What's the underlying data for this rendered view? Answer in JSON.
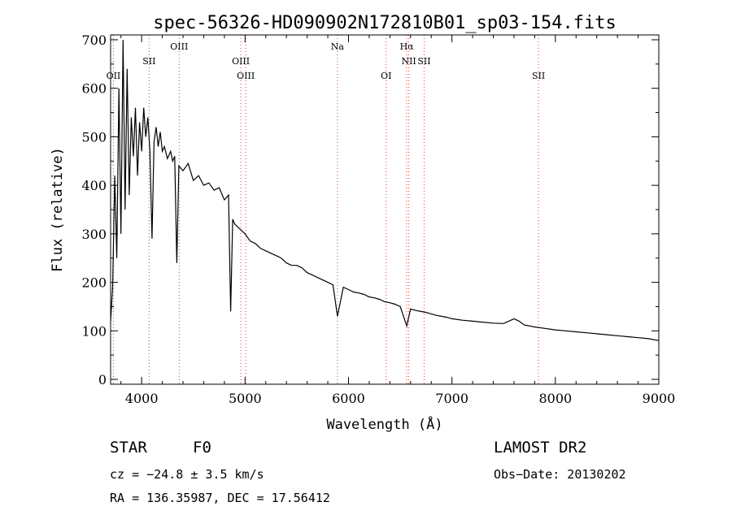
{
  "chart_data": {
    "type": "line",
    "title": "spec-56326-HD090902N172810B01_sp03-154.fits",
    "xlabel": "Wavelength (Å)",
    "ylabel": "Flux (relative)",
    "xlim": [
      3700,
      9000
    ],
    "ylim": [
      -10,
      710
    ],
    "xticks": [
      4000,
      5000,
      6000,
      7000,
      8000,
      9000
    ],
    "yticks": [
      0,
      100,
      200,
      300,
      400,
      500,
      600,
      700
    ],
    "grid": false,
    "series": [
      {
        "color": "#000000",
        "points": [
          [
            3700,
            120
          ],
          [
            3720,
            190
          ],
          [
            3740,
            420
          ],
          [
            3760,
            250
          ],
          [
            3780,
            600
          ],
          [
            3800,
            300
          ],
          [
            3820,
            700
          ],
          [
            3840,
            350
          ],
          [
            3860,
            640
          ],
          [
            3880,
            380
          ],
          [
            3900,
            540
          ],
          [
            3920,
            460
          ],
          [
            3940,
            560
          ],
          [
            3960,
            420
          ],
          [
            3980,
            530
          ],
          [
            4000,
            470
          ],
          [
            4020,
            560
          ],
          [
            4040,
            500
          ],
          [
            4060,
            540
          ],
          [
            4080,
            470
          ],
          [
            4100,
            290
          ],
          [
            4120,
            490
          ],
          [
            4140,
            520
          ],
          [
            4160,
            480
          ],
          [
            4180,
            510
          ],
          [
            4200,
            470
          ],
          [
            4220,
            480
          ],
          [
            4250,
            455
          ],
          [
            4280,
            470
          ],
          [
            4300,
            450
          ],
          [
            4320,
            460
          ],
          [
            4340,
            240
          ],
          [
            4360,
            440
          ],
          [
            4400,
            430
          ],
          [
            4450,
            445
          ],
          [
            4500,
            410
          ],
          [
            4550,
            420
          ],
          [
            4600,
            400
          ],
          [
            4650,
            405
          ],
          [
            4700,
            390
          ],
          [
            4750,
            395
          ],
          [
            4800,
            370
          ],
          [
            4840,
            380
          ],
          [
            4861,
            140
          ],
          [
            4880,
            330
          ],
          [
            4900,
            320
          ],
          [
            4950,
            310
          ],
          [
            5000,
            300
          ],
          [
            5050,
            285
          ],
          [
            5100,
            280
          ],
          [
            5150,
            270
          ],
          [
            5200,
            265
          ],
          [
            5250,
            260
          ],
          [
            5300,
            255
          ],
          [
            5350,
            250
          ],
          [
            5400,
            240
          ],
          [
            5450,
            235
          ],
          [
            5500,
            235
          ],
          [
            5550,
            230
          ],
          [
            5600,
            220
          ],
          [
            5650,
            215
          ],
          [
            5700,
            210
          ],
          [
            5750,
            205
          ],
          [
            5800,
            200
          ],
          [
            5850,
            195
          ],
          [
            5893,
            130
          ],
          [
            5950,
            190
          ],
          [
            6000,
            185
          ],
          [
            6050,
            180
          ],
          [
            6100,
            178
          ],
          [
            6150,
            175
          ],
          [
            6200,
            170
          ],
          [
            6250,
            168
          ],
          [
            6300,
            165
          ],
          [
            6350,
            160
          ],
          [
            6400,
            158
          ],
          [
            6450,
            155
          ],
          [
            6500,
            150
          ],
          [
            6563,
            110
          ],
          [
            6600,
            145
          ],
          [
            6650,
            142
          ],
          [
            6700,
            140
          ],
          [
            6750,
            138
          ],
          [
            6800,
            135
          ],
          [
            6850,
            132
          ],
          [
            6900,
            130
          ],
          [
            6950,
            128
          ],
          [
            7000,
            125
          ],
          [
            7100,
            122
          ],
          [
            7200,
            120
          ],
          [
            7300,
            118
          ],
          [
            7400,
            116
          ],
          [
            7500,
            115
          ],
          [
            7600,
            125
          ],
          [
            7650,
            120
          ],
          [
            7700,
            112
          ],
          [
            7800,
            108
          ],
          [
            7900,
            105
          ],
          [
            8000,
            102
          ],
          [
            8100,
            100
          ],
          [
            8200,
            98
          ],
          [
            8300,
            96
          ],
          [
            8400,
            94
          ],
          [
            8500,
            92
          ],
          [
            8600,
            90
          ],
          [
            8700,
            88
          ],
          [
            8800,
            86
          ],
          [
            8900,
            84
          ],
          [
            9000,
            80
          ]
        ]
      }
    ],
    "lines": [
      {
        "label": "OII",
        "x": 3727,
        "row": 2
      },
      {
        "label": "SII",
        "x": 4072,
        "row": 1
      },
      {
        "label": "OIII",
        "x": 4363,
        "row": 0
      },
      {
        "label": "OIII",
        "x": 4959,
        "row": 1
      },
      {
        "label": "OIII",
        "x": 5007,
        "row": 2
      },
      {
        "label": "Na",
        "x": 5893,
        "row": 0
      },
      {
        "label": "OI",
        "x": 6364,
        "row": 2
      },
      {
        "label": "Hα",
        "x": 6563,
        "row": 0
      },
      {
        "label": "NII",
        "x": 6583,
        "row": 1
      },
      {
        "label": "SII",
        "x": 6731,
        "row": 1
      },
      {
        "label": "SII",
        "x": 7837,
        "row": 2
      }
    ]
  },
  "info": {
    "class": "STAR",
    "subclass": "F0",
    "survey": "LAMOST DR2",
    "cz": "cz = −24.8 ± 3.5 km/s",
    "obs_date": "Obs−Date: 20130202",
    "coords": "RA = 136.35987, DEC =  17.56412"
  }
}
